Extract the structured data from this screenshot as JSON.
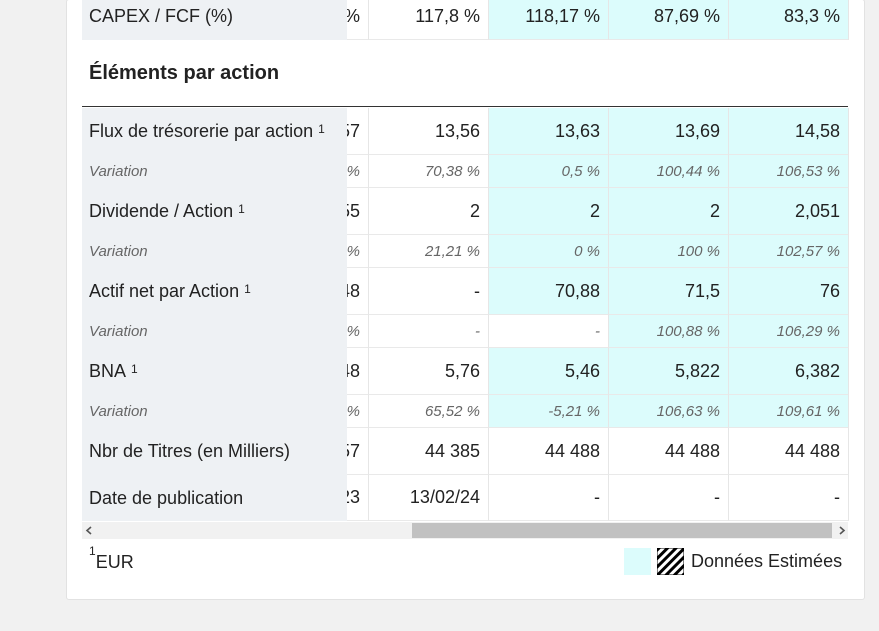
{
  "table": {
    "rows": [
      {
        "kind": "main",
        "label": "CAPEX / FCF (%)",
        "clipped": "%",
        "values": [
          "117,8 %",
          "118,17 %",
          "87,69 %",
          "83,3 %"
        ],
        "estimated": [
          false,
          true,
          true,
          true
        ]
      },
      {
        "kind": "section",
        "label": "Éléments par action"
      },
      {
        "kind": "main",
        "label": "Flux de trésorerie par action",
        "note": "1",
        "clipped": "57",
        "values": [
          "13,56",
          "13,63",
          "13,69",
          "14,58"
        ],
        "estimated": [
          false,
          true,
          true,
          true
        ]
      },
      {
        "kind": "variation",
        "label": "Variation",
        "clipped": "%",
        "values": [
          "70,38 %",
          "0,5 %",
          "100,44 %",
          "106,53 %"
        ],
        "estimated": [
          false,
          true,
          true,
          true
        ]
      },
      {
        "kind": "main",
        "label": "Dividende / Action",
        "note": "1",
        "clipped": "55",
        "values": [
          "2",
          "2",
          "2",
          "2,051"
        ],
        "estimated": [
          false,
          true,
          true,
          true
        ]
      },
      {
        "kind": "variation",
        "label": "Variation",
        "clipped": "%",
        "values": [
          "21,21 %",
          "0 %",
          "100 %",
          "102,57 %"
        ],
        "estimated": [
          false,
          true,
          true,
          true
        ]
      },
      {
        "kind": "main",
        "label": "Actif net par Action",
        "note": "1",
        "clipped": "48",
        "values": [
          "-",
          "70,88",
          "71,5",
          "76"
        ],
        "estimated": [
          false,
          true,
          true,
          true
        ]
      },
      {
        "kind": "variation",
        "label": "Variation",
        "clipped": "%",
        "values": [
          "-",
          "-",
          "100,88 %",
          "106,29 %"
        ],
        "estimated": [
          false,
          false,
          true,
          true
        ]
      },
      {
        "kind": "main",
        "label": "BNA",
        "note": "1",
        "clipped": "48",
        "values": [
          "5,76",
          "5,46",
          "5,822",
          "6,382"
        ],
        "estimated": [
          false,
          true,
          true,
          true
        ]
      },
      {
        "kind": "variation",
        "label": "Variation",
        "clipped": "%",
        "values": [
          "65,52 %",
          "-5,21 %",
          "106,63 %",
          "109,61 %"
        ],
        "estimated": [
          false,
          true,
          true,
          true
        ]
      },
      {
        "kind": "main",
        "label": "Nbr de Titres (en Milliers)",
        "clipped": "57",
        "values": [
          "44 385",
          "44 488",
          "44 488",
          "44 488"
        ],
        "estimated": [
          false,
          false,
          false,
          false
        ]
      },
      {
        "kind": "main",
        "label": "Date de publication",
        "clipped": "23",
        "values": [
          "13/02/24",
          "-",
          "-",
          "-"
        ],
        "estimated": [
          false,
          false,
          false,
          false
        ]
      }
    ]
  },
  "footer": {
    "note_mark": "1",
    "note_text": "EUR",
    "legend": "Données Estimées"
  }
}
